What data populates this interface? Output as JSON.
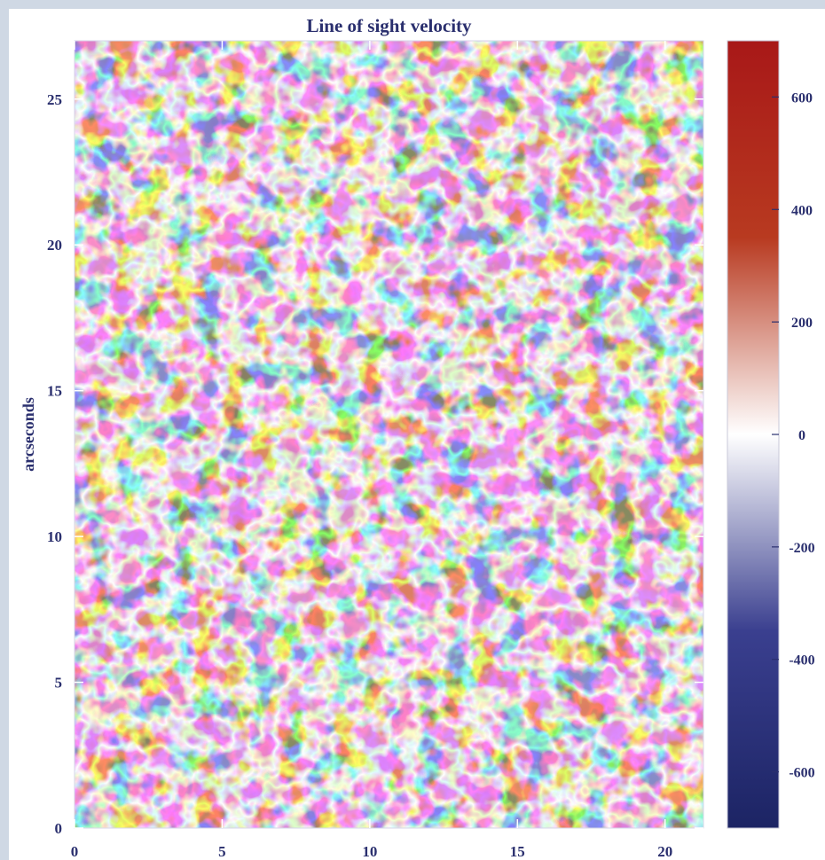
{
  "chart_data": {
    "type": "heatmap",
    "title": "Line of sight velocity",
    "xlabel": "",
    "ylabel": "arcseconds",
    "xlim": [
      0,
      21.3
    ],
    "ylim": [
      0,
      27
    ],
    "x_ticks": [
      0,
      5,
      10,
      15,
      20
    ],
    "y_ticks": [
      0,
      5,
      10,
      15,
      20,
      25
    ],
    "colorbar": {
      "range": [
        -700,
        700
      ],
      "ticks": [
        600,
        400,
        200,
        0,
        -200,
        -400,
        -600
      ],
      "colors": [
        "#1c2464",
        "#3a3f8f",
        "#ffffff",
        "#b83a20",
        "#a81818"
      ]
    },
    "colors": {
      "negative": "#3a3f8f",
      "zero": "#ffffff",
      "positive": "#b83a20",
      "frame": "#cfd8e4",
      "text": "#2a2f6e"
    }
  }
}
